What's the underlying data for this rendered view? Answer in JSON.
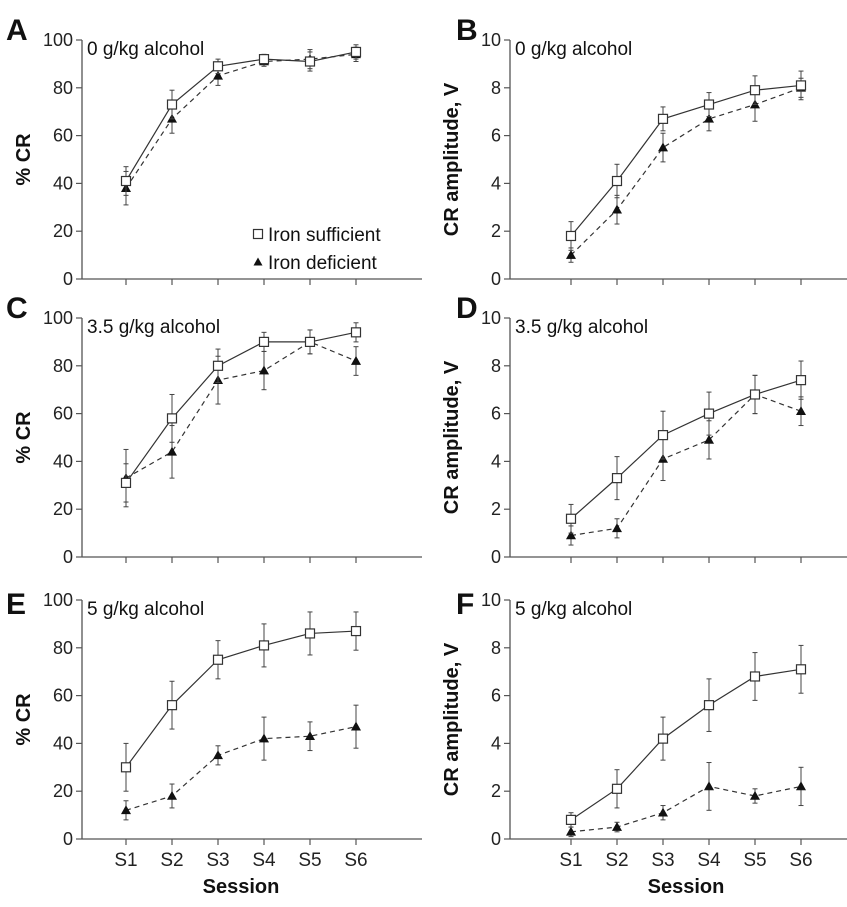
{
  "chart_data": [
    {
      "panel": "A",
      "type": "line",
      "title": "0 g/kg alcohol",
      "xlabel": "",
      "ylabel": "% CR",
      "categories": [
        "S1",
        "S2",
        "S3",
        "S4",
        "S5",
        "S6"
      ],
      "show_x_tick_labels": false,
      "ylim": [
        0,
        100
      ],
      "yticks": [
        0,
        20,
        40,
        60,
        80,
        100
      ],
      "legend": {
        "placement": "lower-right",
        "entries": [
          {
            "label": "Iron sufficient",
            "marker": "open-square",
            "line": "solid"
          },
          {
            "label": "Iron deficient",
            "marker": "filled-triangle",
            "line": "dashed"
          }
        ]
      },
      "series": [
        {
          "name": "Iron sufficient",
          "marker": "open-square",
          "line": "solid",
          "values": [
            41,
            73,
            89,
            92,
            91,
            95
          ],
          "errors": [
            6,
            6,
            3,
            2,
            4,
            3
          ]
        },
        {
          "name": "Iron deficient",
          "marker": "filled-triangle",
          "line": "dashed",
          "values": [
            38,
            67,
            85,
            91,
            92,
            94
          ],
          "errors": [
            7,
            6,
            4,
            2,
            4,
            3
          ]
        }
      ]
    },
    {
      "panel": "B",
      "type": "line",
      "title": "0 g/kg alcohol",
      "xlabel": "",
      "ylabel": "CR amplitude, V",
      "categories": [
        "S1",
        "S2",
        "S3",
        "S4",
        "S5",
        "S6"
      ],
      "show_x_tick_labels": false,
      "ylim": [
        0,
        10
      ],
      "yticks": [
        0,
        2,
        4,
        6,
        8,
        10
      ],
      "series": [
        {
          "name": "Iron sufficient",
          "marker": "open-square",
          "line": "solid",
          "values": [
            1.8,
            4.1,
            6.7,
            7.3,
            7.9,
            8.1
          ],
          "errors": [
            0.6,
            0.7,
            0.5,
            0.5,
            0.6,
            0.6
          ]
        },
        {
          "name": "Iron deficient",
          "marker": "filled-triangle",
          "line": "dashed",
          "values": [
            1.0,
            2.9,
            5.5,
            6.7,
            7.3,
            8.0
          ],
          "errors": [
            0.3,
            0.6,
            0.6,
            0.5,
            0.7,
            0.4
          ]
        }
      ]
    },
    {
      "panel": "C",
      "type": "line",
      "title": "3.5 g/kg alcohol",
      "xlabel": "",
      "ylabel": "% CR",
      "categories": [
        "S1",
        "S2",
        "S3",
        "S4",
        "S5",
        "S6"
      ],
      "show_x_tick_labels": false,
      "ylim": [
        0,
        100
      ],
      "yticks": [
        0,
        20,
        40,
        60,
        80,
        100
      ],
      "series": [
        {
          "name": "Iron sufficient",
          "marker": "open-square",
          "line": "solid",
          "values": [
            31,
            58,
            80,
            90,
            90,
            94
          ],
          "errors": [
            8,
            10,
            7,
            4,
            5,
            4
          ]
        },
        {
          "name": "Iron deficient",
          "marker": "filled-triangle",
          "line": "dashed",
          "values": [
            33,
            44,
            74,
            78,
            90,
            82
          ],
          "errors": [
            12,
            11,
            10,
            8,
            5,
            6
          ]
        }
      ]
    },
    {
      "panel": "D",
      "type": "line",
      "title": "3.5 g/kg alcohol",
      "xlabel": "",
      "ylabel": "CR amplitude, V",
      "categories": [
        "S1",
        "S2",
        "S3",
        "S4",
        "S5",
        "S6"
      ],
      "show_x_tick_labels": false,
      "ylim": [
        0,
        10
      ],
      "yticks": [
        0,
        2,
        4,
        6,
        8,
        10
      ],
      "series": [
        {
          "name": "Iron sufficient",
          "marker": "open-square",
          "line": "solid",
          "values": [
            1.6,
            3.3,
            5.1,
            6.0,
            6.8,
            7.4
          ],
          "errors": [
            0.6,
            0.9,
            1.0,
            0.9,
            0.8,
            0.8
          ]
        },
        {
          "name": "Iron deficient",
          "marker": "filled-triangle",
          "line": "dashed",
          "values": [
            0.9,
            1.2,
            4.1,
            4.9,
            6.8,
            6.1
          ],
          "errors": [
            0.4,
            0.4,
            0.9,
            0.8,
            0.8,
            0.6
          ]
        }
      ]
    },
    {
      "panel": "E",
      "type": "line",
      "title": "5 g/kg alcohol",
      "xlabel": "Session",
      "ylabel": "% CR",
      "categories": [
        "S1",
        "S2",
        "S3",
        "S4",
        "S5",
        "S6"
      ],
      "show_x_tick_labels": true,
      "ylim": [
        0,
        100
      ],
      "yticks": [
        0,
        20,
        40,
        60,
        80,
        100
      ],
      "series": [
        {
          "name": "Iron sufficient",
          "marker": "open-square",
          "line": "solid",
          "values": [
            30,
            56,
            75,
            81,
            86,
            87
          ],
          "errors": [
            10,
            10,
            8,
            9,
            9,
            8
          ]
        },
        {
          "name": "Iron deficient",
          "marker": "filled-triangle",
          "line": "dashed",
          "values": [
            12,
            18,
            35,
            42,
            43,
            47
          ],
          "errors": [
            4,
            5,
            4,
            9,
            6,
            9
          ]
        }
      ]
    },
    {
      "panel": "F",
      "type": "line",
      "title": "5 g/kg alcohol",
      "xlabel": "Session",
      "ylabel": "CR amplitude, V",
      "categories": [
        "S1",
        "S2",
        "S3",
        "S4",
        "S5",
        "S6"
      ],
      "show_x_tick_labels": true,
      "ylim": [
        0,
        10
      ],
      "yticks": [
        0,
        2,
        4,
        6,
        8,
        10
      ],
      "series": [
        {
          "name": "Iron sufficient",
          "marker": "open-square",
          "line": "solid",
          "values": [
            0.8,
            2.1,
            4.2,
            5.6,
            6.8,
            7.1
          ],
          "errors": [
            0.3,
            0.8,
            0.9,
            1.1,
            1.0,
            1.0
          ]
        },
        {
          "name": "Iron deficient",
          "marker": "filled-triangle",
          "line": "dashed",
          "values": [
            0.3,
            0.5,
            1.1,
            2.2,
            1.8,
            2.2
          ],
          "errors": [
            0.2,
            0.2,
            0.3,
            1.0,
            0.3,
            0.8
          ]
        }
      ]
    }
  ]
}
